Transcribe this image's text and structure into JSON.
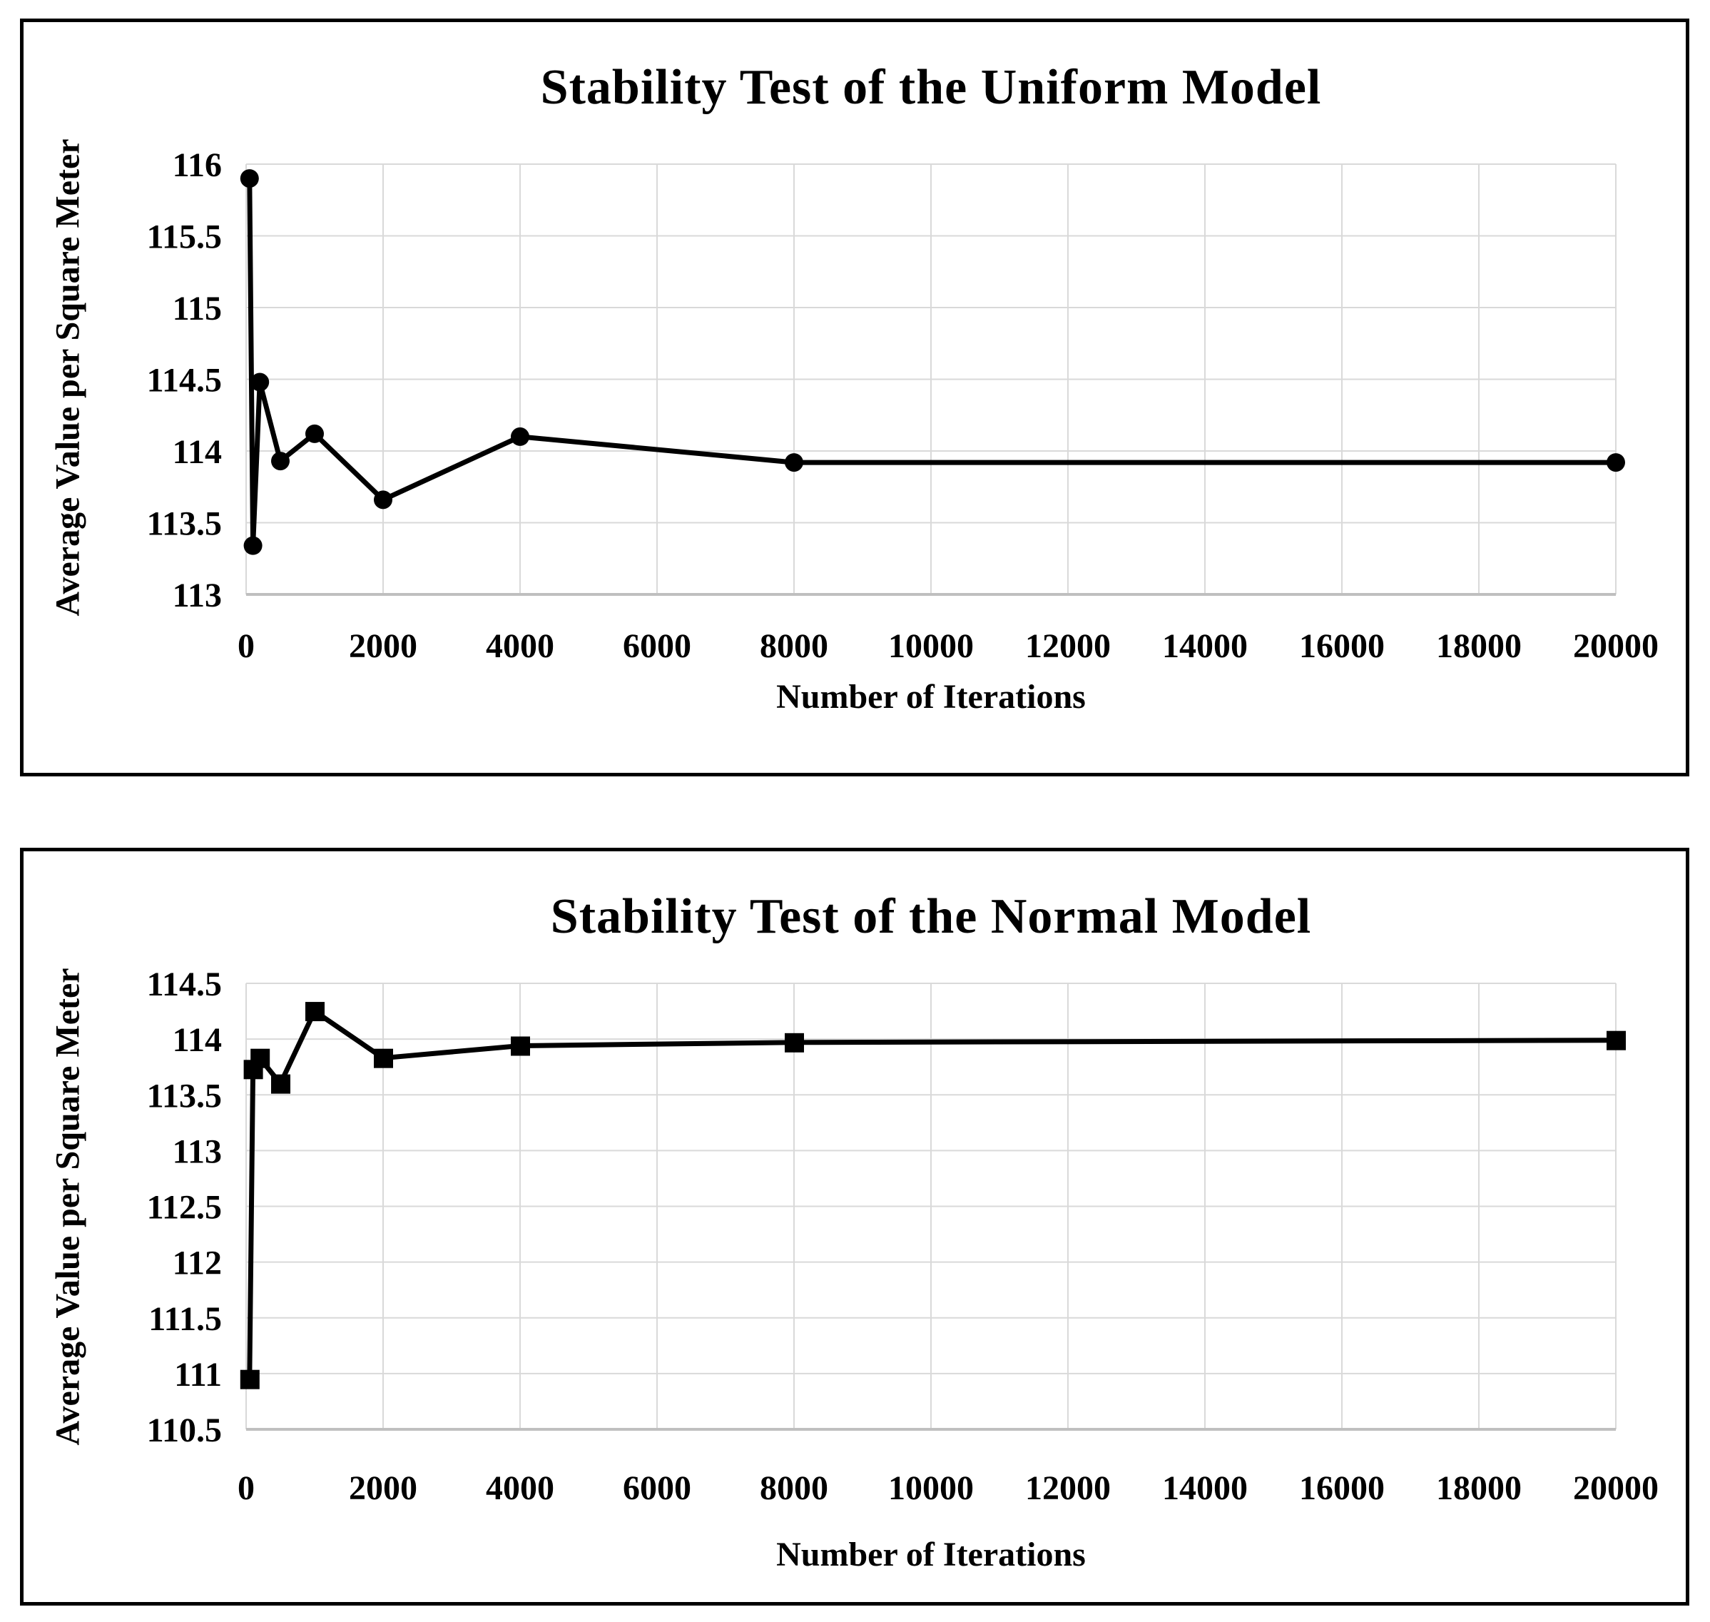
{
  "page": {
    "background": "#ffffff"
  },
  "chart_data": [
    {
      "type": "line",
      "title": "Stability Test of the Uniform Model",
      "xlabel": "Number of Iterations",
      "ylabel": "Average Value per Square Meter",
      "legend": "none",
      "grid": true,
      "marker": "circle",
      "colors": {
        "line": "#000000",
        "marker": "#000000",
        "gridline": "#d9d9d9",
        "axis_line": "#bfbfbf",
        "border": "#000000",
        "text": "#000000"
      },
      "xlim": [
        0,
        20000
      ],
      "ylim": [
        113,
        116
      ],
      "xticks": [
        0,
        2000,
        4000,
        6000,
        8000,
        10000,
        12000,
        14000,
        16000,
        18000,
        20000
      ],
      "yticks": [
        113,
        113.5,
        114,
        114.5,
        115,
        115.5,
        116
      ],
      "points": [
        {
          "x": 50,
          "y": 115.9
        },
        {
          "x": 100,
          "y": 113.34
        },
        {
          "x": 200,
          "y": 114.48
        },
        {
          "x": 500,
          "y": 113.93
        },
        {
          "x": 1000,
          "y": 114.12
        },
        {
          "x": 2000,
          "y": 113.66
        },
        {
          "x": 4000,
          "y": 114.1
        },
        {
          "x": 8000,
          "y": 113.92
        },
        {
          "x": 20000,
          "y": 113.92
        }
      ]
    },
    {
      "type": "line",
      "title": "Stability Test of the Normal Model",
      "xlabel": "Number of Iterations",
      "ylabel": "Average Value per Square Meter",
      "legend": "none",
      "grid": true,
      "marker": "square",
      "colors": {
        "line": "#000000",
        "marker": "#000000",
        "gridline": "#d9d9d9",
        "axis_line": "#bfbfbf",
        "border": "#000000",
        "text": "#000000"
      },
      "xlim": [
        0,
        20000
      ],
      "ylim": [
        110.5,
        114.5
      ],
      "xticks": [
        0,
        2000,
        4000,
        6000,
        8000,
        10000,
        12000,
        14000,
        16000,
        18000,
        20000
      ],
      "yticks": [
        110.5,
        111,
        111.5,
        112,
        112.5,
        113,
        113.5,
        114,
        114.5
      ],
      "points": [
        {
          "x": 50,
          "y": 110.95
        },
        {
          "x": 100,
          "y": 113.73
        },
        {
          "x": 200,
          "y": 113.83
        },
        {
          "x": 500,
          "y": 113.6
        },
        {
          "x": 1000,
          "y": 114.25
        },
        {
          "x": 2000,
          "y": 113.83
        },
        {
          "x": 4000,
          "y": 113.94
        },
        {
          "x": 8000,
          "y": 113.97
        },
        {
          "x": 20000,
          "y": 113.99
        }
      ]
    }
  ]
}
